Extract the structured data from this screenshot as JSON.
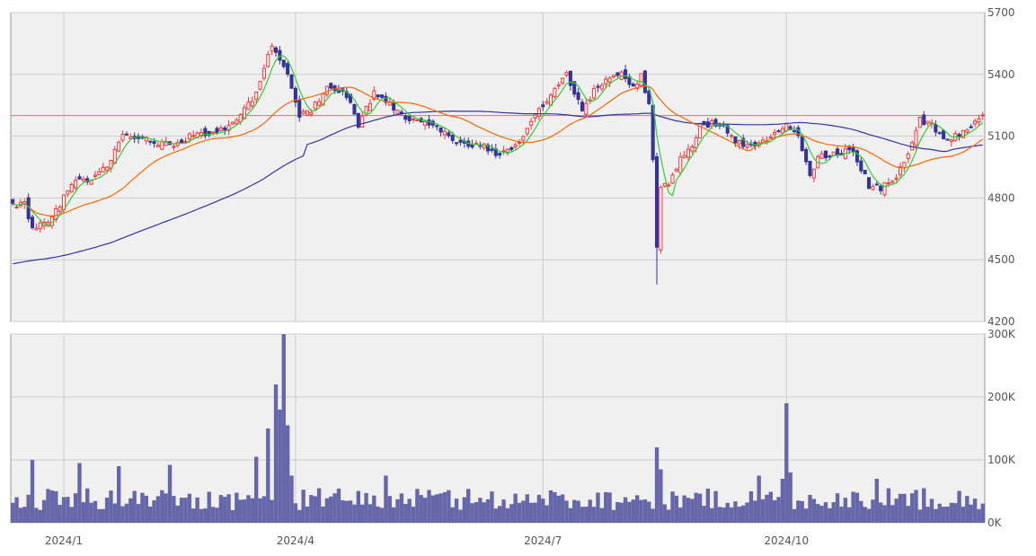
{
  "colors": {
    "panel_bg": "#f0f0f0",
    "grid": "#cccccc",
    "border": "#999999",
    "up": "#ff3333",
    "down": "#333399",
    "ma_short": "#33cc33",
    "ma_mid": "#ff6600",
    "ma_long": "#3333aa",
    "ref_line": "#ff6666",
    "volume": "#6666aa"
  },
  "chart_data": [
    {
      "type": "candlestick",
      "title": "",
      "ylim": [
        4200,
        5700
      ],
      "yticks": [
        "4200",
        "4500",
        "4800",
        "5100",
        "5400",
        "5700"
      ],
      "reference_level": 5200,
      "ohlc": [],
      "series": [
        {
          "key": "ma_short",
          "values": []
        },
        {
          "key": "ma_mid",
          "values": []
        },
        {
          "key": "ma_long",
          "values": []
        }
      ]
    },
    {
      "type": "bar",
      "title": "",
      "ylim": [
        0,
        300000
      ],
      "yticks": [
        "0K",
        "100K",
        "200K",
        "300K"
      ],
      "values": []
    }
  ],
  "x_axis": {
    "ticks": [
      {
        "label": "2024/1",
        "index": 13
      },
      {
        "label": "2024/4",
        "index": 72
      },
      {
        "label": "2024/7",
        "index": 135
      },
      {
        "label": "2024/10",
        "index": 197
      }
    ],
    "count": 248
  },
  "key_points": [
    {
      "i": 0,
      "c": 4760
    },
    {
      "i": 3,
      "c": 4770
    },
    {
      "i": 5,
      "c": 4650
    },
    {
      "i": 8,
      "c": 4690
    },
    {
      "i": 10,
      "c": 4700
    },
    {
      "i": 13,
      "c": 4800
    },
    {
      "i": 16,
      "c": 4880
    },
    {
      "i": 19,
      "c": 4880
    },
    {
      "i": 24,
      "c": 4960
    },
    {
      "i": 28,
      "c": 5100
    },
    {
      "i": 35,
      "c": 5080
    },
    {
      "i": 41,
      "c": 5050
    },
    {
      "i": 45,
      "c": 5100
    },
    {
      "i": 51,
      "c": 5120
    },
    {
      "i": 56,
      "c": 5160
    },
    {
      "i": 62,
      "c": 5300
    },
    {
      "i": 66,
      "c": 5550
    },
    {
      "i": 69,
      "c": 5450
    },
    {
      "i": 73,
      "c": 5200
    },
    {
      "i": 76,
      "c": 5230
    },
    {
      "i": 80,
      "c": 5330
    },
    {
      "i": 85,
      "c": 5300
    },
    {
      "i": 88,
      "c": 5150
    },
    {
      "i": 92,
      "c": 5310
    },
    {
      "i": 94,
      "c": 5300
    },
    {
      "i": 97,
      "c": 5230
    },
    {
      "i": 101,
      "c": 5180
    },
    {
      "i": 107,
      "c": 5150
    },
    {
      "i": 112,
      "c": 5080
    },
    {
      "i": 116,
      "c": 5050
    },
    {
      "i": 120,
      "c": 5050
    },
    {
      "i": 124,
      "c": 5010
    },
    {
      "i": 128,
      "c": 5050
    },
    {
      "i": 133,
      "c": 5200
    },
    {
      "i": 137,
      "c": 5300
    },
    {
      "i": 141,
      "c": 5400
    },
    {
      "i": 143,
      "c": 5300
    },
    {
      "i": 145,
      "c": 5230
    },
    {
      "i": 149,
      "c": 5350
    },
    {
      "i": 153,
      "c": 5380
    },
    {
      "i": 155,
      "c": 5400
    },
    {
      "i": 158,
      "c": 5330
    },
    {
      "i": 160,
      "c": 5390
    },
    {
      "i": 162,
      "c": 5250
    },
    {
      "i": 163,
      "c": 5000
    },
    {
      "i": 164,
      "c": 4550
    },
    {
      "i": 165,
      "c": 4850
    },
    {
      "i": 167,
      "c": 4860
    },
    {
      "i": 170,
      "c": 5000
    },
    {
      "i": 173,
      "c": 5050
    },
    {
      "i": 175,
      "c": 5150
    },
    {
      "i": 178,
      "c": 5160
    },
    {
      "i": 181,
      "c": 5140
    },
    {
      "i": 184,
      "c": 5080
    },
    {
      "i": 187,
      "c": 5050
    },
    {
      "i": 190,
      "c": 5060
    },
    {
      "i": 193,
      "c": 5100
    },
    {
      "i": 197,
      "c": 5150
    },
    {
      "i": 200,
      "c": 5100
    },
    {
      "i": 203,
      "c": 4900
    },
    {
      "i": 205,
      "c": 5000
    },
    {
      "i": 210,
      "c": 5020
    },
    {
      "i": 214,
      "c": 5030
    },
    {
      "i": 218,
      "c": 4860
    },
    {
      "i": 221,
      "c": 4850
    },
    {
      "i": 225,
      "c": 4900
    },
    {
      "i": 229,
      "c": 5070
    },
    {
      "i": 231,
      "c": 5180
    },
    {
      "i": 234,
      "c": 5150
    },
    {
      "i": 237,
      "c": 5080
    },
    {
      "i": 240,
      "c": 5100
    },
    {
      "i": 244,
      "c": 5140
    },
    {
      "i": 247,
      "c": 5200
    }
  ],
  "volume_spikes": [
    {
      "i": 5,
      "v": 100000
    },
    {
      "i": 17,
      "v": 95000
    },
    {
      "i": 27,
      "v": 90000
    },
    {
      "i": 40,
      "v": 92000
    },
    {
      "i": 62,
      "v": 105000
    },
    {
      "i": 65,
      "v": 150000
    },
    {
      "i": 67,
      "v": 220000
    },
    {
      "i": 68,
      "v": 180000
    },
    {
      "i": 69,
      "v": 300000
    },
    {
      "i": 70,
      "v": 155000
    },
    {
      "i": 71,
      "v": 75000
    },
    {
      "i": 95,
      "v": 75000
    },
    {
      "i": 164,
      "v": 120000
    },
    {
      "i": 165,
      "v": 85000
    },
    {
      "i": 190,
      "v": 75000
    },
    {
      "i": 196,
      "v": 70000
    },
    {
      "i": 197,
      "v": 190000
    },
    {
      "i": 198,
      "v": 80000
    },
    {
      "i": 220,
      "v": 70000
    },
    {
      "i": 232,
      "v": 55000
    }
  ]
}
